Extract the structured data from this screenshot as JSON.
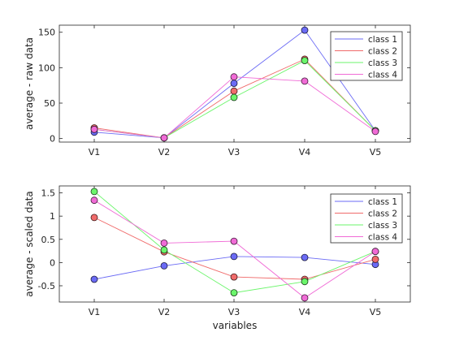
{
  "chart_data": [
    {
      "type": "line",
      "title": "",
      "xlabel": "",
      "ylabel": "average - raw data",
      "categories": [
        "V1",
        "V2",
        "V3",
        "V4",
        "V5"
      ],
      "ylim": [
        -5,
        160
      ],
      "yticks": [
        0,
        50,
        100,
        150
      ],
      "ytick_labels": [
        "0",
        "50",
        "100",
        "150"
      ],
      "grid": false,
      "legend": "top-right",
      "series": [
        {
          "name": "class 1",
          "color": "#6b6bf5",
          "values": [
            9,
            1,
            78,
            153,
            11
          ]
        },
        {
          "name": "class 2",
          "color": "#f06b6b",
          "values": [
            15,
            1,
            67,
            112,
            11
          ]
        },
        {
          "name": "class 3",
          "color": "#6bf56b",
          "values": [
            13,
            1,
            58,
            110,
            11
          ]
        },
        {
          "name": "class 4",
          "color": "#f06bd6",
          "values": [
            13,
            1,
            87,
            81,
            10
          ]
        }
      ]
    },
    {
      "type": "line",
      "title": "",
      "xlabel": "variables",
      "ylabel": "average - scaled data",
      "categories": [
        "V1",
        "V2",
        "V3",
        "V4",
        "V5"
      ],
      "ylim": [
        -0.85,
        1.65
      ],
      "yticks": [
        -0.5,
        0,
        0.5,
        1,
        1.5
      ],
      "ytick_labels": [
        "-0.5",
        "0",
        "0.5",
        "1",
        "1.5"
      ],
      "grid": false,
      "legend": "top-right",
      "series": [
        {
          "name": "class 1",
          "color": "#6b6bf5",
          "values": [
            -0.36,
            -0.07,
            0.13,
            0.11,
            -0.04
          ]
        },
        {
          "name": "class 2",
          "color": "#f06b6b",
          "values": [
            0.97,
            0.23,
            -0.31,
            -0.36,
            0.07
          ]
        },
        {
          "name": "class 3",
          "color": "#6bf56b",
          "values": [
            1.53,
            0.27,
            -0.65,
            -0.41,
            0.24
          ]
        },
        {
          "name": "class 4",
          "color": "#f06bd6",
          "values": [
            1.34,
            0.42,
            0.46,
            -0.76,
            0.24
          ]
        }
      ]
    }
  ]
}
